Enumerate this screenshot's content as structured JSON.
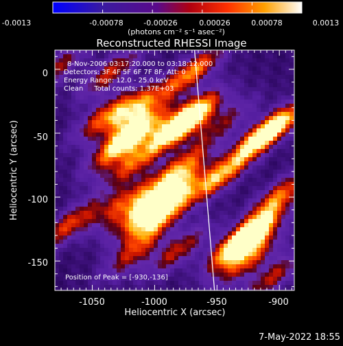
{
  "colorbar": {
    "tick_labels": [
      "-0.0013",
      "-0.00078",
      "-0.00026",
      "0.00026",
      "0.00078",
      "0.0013"
    ],
    "range": [
      -0.0013,
      0.0013
    ],
    "units_label": "(photons cm⁻² s⁻¹ asec⁻²)"
  },
  "chart_data": {
    "type": "heatmap",
    "title": "Reconstructed RHESSI Image",
    "xlabel": "Heliocentric X (arcsec)",
    "ylabel": "Heliocentric Y (arcsec)",
    "xlim": [
      -1080,
      -888
    ],
    "ylim": [
      -173,
      15
    ],
    "xticks": [
      -1050,
      -1000,
      -950,
      -900
    ],
    "yticks": [
      0,
      -50,
      -100,
      -150
    ],
    "colormap": "RHESSI: blue-purple (low) to red-orange-yellow-white (high)",
    "info_lines": [
      "8-Nov-2006 03:17:20.000 to 03:18:12.000",
      "Detectors: 3F 4F 5F 6F 7F 8F, Att: 0",
      "Energy Range: 12.0 - 25.0 keV",
      "Clean     Total counts: 1.37E+03"
    ],
    "peak_label": "Position of Peak = [-930,-136]",
    "limb_line": {
      "x": [
        -968,
        -952
      ],
      "y": [
        15,
        -173
      ]
    },
    "peak_position": [
      -930,
      -136
    ]
  },
  "timestamp": "7-May-2022 18:55"
}
